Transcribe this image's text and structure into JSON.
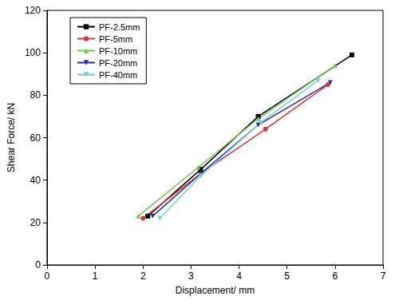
{
  "chart_data": {
    "type": "line",
    "x_label": "Displacement/ mm",
    "y_label": "Shear Force/ kN",
    "xlim": [
      0,
      7
    ],
    "xticks": [
      0,
      1,
      2,
      3,
      4,
      5,
      6,
      7
    ],
    "ylim": [
      0,
      120
    ],
    "yticks": [
      0,
      20,
      40,
      60,
      80,
      100,
      120
    ],
    "grid": false,
    "legend": "upper left",
    "series": [
      {
        "name": "PF-2.5mm",
        "color": "#000000",
        "marker": "square",
        "x": [
          2.1,
          3.2,
          4.4,
          6.35
        ],
        "values": [
          23,
          45,
          70,
          99
        ]
      },
      {
        "name": "PF-5mm",
        "color": "#e8302f",
        "marker": "circle",
        "x": [
          2.0,
          3.2,
          4.55,
          5.85
        ],
        "values": [
          22,
          43,
          64,
          85
        ]
      },
      {
        "name": "PF-10mm",
        "color": "#6fce3f",
        "marker": "triangle",
        "x": [
          1.9,
          3.15,
          4.4,
          6.0
        ],
        "values": [
          23,
          46,
          69,
          94
        ]
      },
      {
        "name": "PF-20mm",
        "color": "#2b2bb0",
        "marker": "triangle_down",
        "x": [
          2.2,
          3.2,
          4.4,
          5.9
        ],
        "values": [
          23,
          43,
          66,
          86
        ]
      },
      {
        "name": "PF-40mm",
        "color": "#6ad4e6",
        "marker": "triangle_down",
        "x": [
          2.35,
          3.2,
          4.45,
          5.65
        ],
        "values": [
          22,
          42,
          67,
          87
        ]
      }
    ]
  }
}
